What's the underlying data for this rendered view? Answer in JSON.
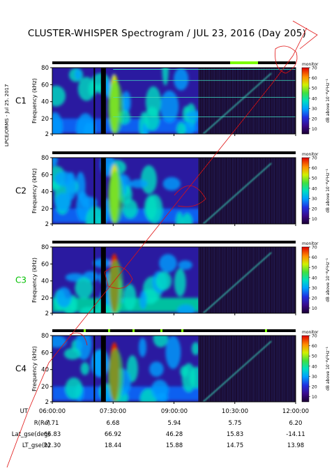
{
  "page": {
    "title": "CLUSTER-WHISPER Spectrogram / JUL 23, 2016 (Day 205)",
    "side_label": "LPCE/ORMS - Jul 25. 2017"
  },
  "colors": {
    "c3_label": "#00c000",
    "default_label": "#000000",
    "status_bar_ok": "#7cfc00",
    "background": "#ffffff"
  },
  "chart_data": [
    {
      "type": "heatmap",
      "panel": "C1",
      "ylabel": "Frequency (kHz)",
      "ylim": [
        2,
        80
      ],
      "yticks": [
        2,
        20,
        40,
        60,
        80
      ],
      "colorbar": {
        "label": "dB above 10⁻⁸V²Hz⁻¹",
        "ticks": [
          10,
          20,
          30,
          40,
          50,
          60,
          70
        ],
        "range": [
          5,
          70
        ],
        "header": "monitor"
      }
    },
    {
      "type": "heatmap",
      "panel": "C2",
      "ylabel": "Frequency (kHz)",
      "ylim": [
        2,
        80
      ],
      "yticks": [
        2,
        20,
        40,
        60,
        80
      ],
      "colorbar": {
        "label": "dB above 10⁻⁸V²Hz⁻¹",
        "ticks": [
          10,
          20,
          30,
          40,
          50,
          60,
          70
        ],
        "range": [
          5,
          70
        ],
        "header": "monitor"
      }
    },
    {
      "type": "heatmap",
      "panel": "C3",
      "ylabel": "Frequency (kHz)",
      "ylim": [
        2,
        80
      ],
      "yticks": [
        2,
        20,
        40,
        60,
        80
      ],
      "colorbar": {
        "label": "dB above 10⁻⁸V²Hz⁻¹",
        "ticks": [
          10,
          20,
          30,
          40,
          50,
          60,
          70
        ],
        "range": [
          5,
          70
        ],
        "header": "monitor"
      }
    },
    {
      "type": "heatmap",
      "panel": "C4",
      "ylabel": "Frequency (kHz)",
      "ylim": [
        2,
        80
      ],
      "yticks": [
        2,
        20,
        40,
        60,
        80
      ],
      "colorbar": {
        "label": "dB above 10⁻⁸V²Hz⁻¹",
        "ticks": [
          10,
          20,
          30,
          40,
          50,
          60,
          70
        ],
        "range": [
          5,
          70
        ],
        "header": "monitor"
      }
    }
  ],
  "panels": [
    {
      "name": "C1"
    },
    {
      "name": "C2"
    },
    {
      "name": "C3"
    },
    {
      "name": "C4"
    }
  ],
  "orbit_table": {
    "ut_label": "UT",
    "ut_ticks": [
      "06:00:00",
      "07:30:00",
      "09:00:00",
      "10:30:00",
      "12:00:00"
    ],
    "rows": [
      {
        "label": "R(Re)",
        "values": [
          "7.71",
          "6.68",
          "5.94",
          "5.75",
          "6.20"
        ]
      },
      {
        "label": "Lat_gse(deg)",
        "values": [
          "66.83",
          "66.92",
          "46.28",
          "15.83",
          "-14.11"
        ]
      },
      {
        "label": "LT_gse(h)",
        "values": [
          "22.30",
          "18.44",
          "15.88",
          "14.75",
          "13.98"
        ]
      }
    ]
  }
}
